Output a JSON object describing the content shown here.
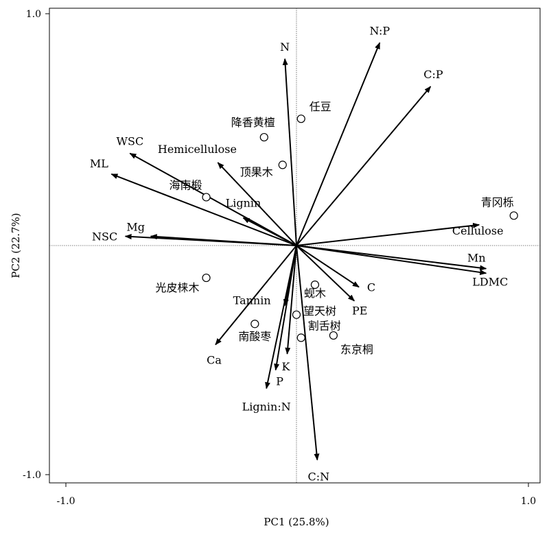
{
  "chart_data": {
    "type": "scatter",
    "subtype": "pca-biplot",
    "xlabel": "PC1 (25.8%)",
    "ylabel": "PC2 (22.7%)",
    "xlim": [
      -1.0,
      1.0
    ],
    "ylim": [
      -1.0,
      1.0
    ],
    "x_ticks": [
      "-1.0",
      "1.0"
    ],
    "y_ticks": [
      "1.0",
      "-1.0"
    ],
    "zero_lines": "dotted",
    "vectors": [
      {
        "name": "N",
        "x": -0.05,
        "y": 0.81
      },
      {
        "name": "N:P",
        "x": 0.36,
        "y": 0.88
      },
      {
        "name": "C:P",
        "x": 0.58,
        "y": 0.69
      },
      {
        "name": "Hemicellulose",
        "x": -0.34,
        "y": 0.36
      },
      {
        "name": "WSC",
        "x": -0.72,
        "y": 0.4
      },
      {
        "name": "ML",
        "x": -0.8,
        "y": 0.31
      },
      {
        "name": "Lignin",
        "x": -0.23,
        "y": 0.12
      },
      {
        "name": "Mg",
        "x": -0.63,
        "y": 0.04
      },
      {
        "name": "NSC",
        "x": -0.74,
        "y": 0.04
      },
      {
        "name": "Cellulose",
        "x": 0.79,
        "y": 0.09
      },
      {
        "name": "Mn",
        "x": 0.82,
        "y": -0.1
      },
      {
        "name": "LDMC",
        "x": 0.82,
        "y": -0.12
      },
      {
        "name": "C",
        "x": 0.27,
        "y": -0.18
      },
      {
        "name": "PE",
        "x": 0.25,
        "y": -0.24
      },
      {
        "name": "Tannin",
        "x": -0.05,
        "y": -0.26
      },
      {
        "name": "Ca",
        "x": -0.35,
        "y": -0.43
      },
      {
        "name": "K",
        "x": -0.04,
        "y": -0.47
      },
      {
        "name": "P",
        "x": -0.09,
        "y": -0.54
      },
      {
        "name": "Lignin:N",
        "x": -0.13,
        "y": -0.62
      },
      {
        "name": "C:N",
        "x": 0.09,
        "y": -0.93
      }
    ],
    "points": [
      {
        "name": "任豆",
        "x": 0.02,
        "y": 0.55
      },
      {
        "name": "降香黄檀",
        "x": -0.14,
        "y": 0.47
      },
      {
        "name": "顶果木",
        "x": -0.06,
        "y": 0.35
      },
      {
        "name": "海南椴",
        "x": -0.39,
        "y": 0.21
      },
      {
        "name": "青冈栎",
        "x": 0.94,
        "y": 0.13
      },
      {
        "name": "光皮梾木",
        "x": -0.39,
        "y": -0.14
      },
      {
        "name": "蚬木",
        "x": 0.08,
        "y": -0.17
      },
      {
        "name": "望天树",
        "x": 0.0,
        "y": -0.3
      },
      {
        "name": "割舌树",
        "x": 0.02,
        "y": -0.4
      },
      {
        "name": "南酸枣",
        "x": -0.18,
        "y": -0.34
      },
      {
        "name": "东京桐",
        "x": 0.16,
        "y": -0.39
      }
    ]
  }
}
